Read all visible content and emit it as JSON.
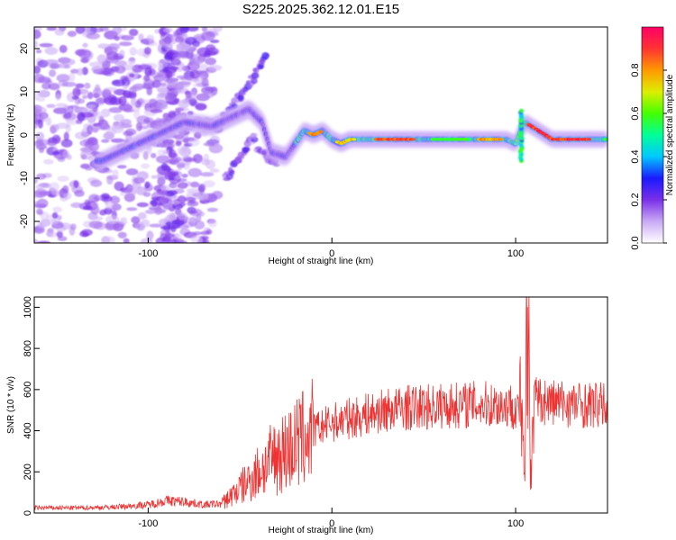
{
  "figure_title": "S225.2025.362.12.01.E15",
  "chart_data": [
    {
      "type": "heatmap",
      "title": "S225.2025.362.12.01.E15",
      "xlabel": "Height of straight line (km)",
      "ylabel": "Frequency (Hz)",
      "xlim": [
        -162,
        150
      ],
      "ylim": [
        -25,
        25
      ],
      "xticks": [
        -100,
        0,
        100
      ],
      "yticks": [
        -20,
        -10,
        0,
        10,
        20
      ],
      "colorbar": {
        "label": "Normalized spectral amplitude",
        "range": [
          0,
          1
        ],
        "ticks": [
          0.0,
          0.2,
          0.4,
          0.6,
          0.8
        ],
        "colors": [
          "#ffffff",
          "#c9a9f5",
          "#7b2fe8",
          "#1a1aff",
          "#00c8ff",
          "#00ff99",
          "#44ff00",
          "#ddee00",
          "#ff9900",
          "#ff3333",
          "#ff0066"
        ]
      },
      "ridge": {
        "x": [
          -125,
          -115,
          -105,
          -95,
          -85,
          -80,
          -65,
          -55,
          -45,
          -38,
          -33,
          -25,
          -20,
          -15,
          -10,
          -5,
          0,
          5,
          10,
          20,
          40,
          60,
          80,
          95,
          100,
          105,
          120,
          150
        ],
        "y": [
          -6,
          -4,
          -2,
          0,
          2,
          3,
          2,
          4,
          6,
          3,
          -4,
          -5,
          -2,
          1,
          0,
          1,
          -1,
          -2,
          -1,
          -1,
          -1,
          -1,
          -1,
          -1,
          -2,
          3,
          -1,
          -1
        ]
      }
    },
    {
      "type": "line",
      "xlabel": "Height of straight line (km)",
      "ylabel": "SNR (10 * v/v)",
      "xlim": [
        -162,
        150
      ],
      "ylim": [
        0,
        1050
      ],
      "xticks": [
        -100,
        0,
        100
      ],
      "yticks": [
        0,
        200,
        400,
        600,
        800,
        1000
      ],
      "color": "#ee3333",
      "series": [
        {
          "name": "SNR",
          "x": [
            -162,
            -140,
            -120,
            -100,
            -90,
            -80,
            -70,
            -60,
            -50,
            -40,
            -30,
            -20,
            -10,
            0,
            10,
            20,
            30,
            40,
            60,
            80,
            100,
            103,
            104,
            105,
            106,
            107,
            108,
            110,
            120,
            130,
            150
          ],
          "values": [
            25,
            25,
            28,
            40,
            60,
            55,
            40,
            45,
            120,
            200,
            280,
            330,
            400,
            440,
            460,
            480,
            500,
            510,
            520,
            530,
            520,
            480,
            300,
            100,
            900,
            1040,
            200,
            550,
            540,
            530,
            520
          ]
        }
      ]
    }
  ]
}
